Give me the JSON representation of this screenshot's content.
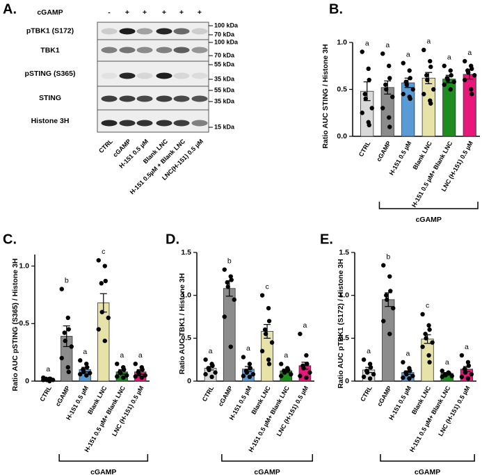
{
  "blot": {
    "panel": "A.",
    "treatment": "cGAMP",
    "signs": [
      "-",
      "+",
      "+",
      "+",
      "+",
      "+"
    ],
    "rows": [
      "pTBK1 (S172)",
      "TBK1",
      "pSTING (S365)",
      "STING",
      "Histone 3H"
    ],
    "markers": [
      "100 kDa",
      "70 kDa",
      "100 kDa",
      "70 kDa",
      "55 kDa",
      "35 kDa",
      "55 kDa",
      "35 kDa",
      "15 kDa"
    ],
    "lanes": [
      "CTRL",
      "cGAMP",
      "H-151 0.5 µM",
      "Blank LNC",
      "H-151 0.5µM + Blank LNC",
      "LNC(H-151) 0.5 µM"
    ]
  },
  "chart_data": [
    {
      "type": "bar",
      "panel": "B.",
      "y_label": "Ratio AUC STING / Histone  3H",
      "categories": [
        "CTRL",
        "cGAMP",
        "H-151 0.5 µM",
        "Blank LNC",
        "H-151 0.5 µM+ Blank LNC",
        "LNC (H-151) 0.5 µM"
      ],
      "values": [
        0.48,
        0.52,
        0.57,
        0.62,
        0.61,
        0.66
      ],
      "errors": [
        0.1,
        0.07,
        0.05,
        0.06,
        0.04,
        0.05
      ],
      "points": [
        [
          0.9,
          0.72,
          0.6,
          0.45,
          0.4,
          0.3,
          0.25,
          0.15,
          0.12
        ],
        [
          0.88,
          0.75,
          0.62,
          0.55,
          0.5,
          0.42,
          0.3,
          0.2,
          0.1
        ],
        [
          0.78,
          0.7,
          0.62,
          0.58,
          0.55,
          0.5,
          0.45,
          0.42,
          0.4
        ],
        [
          0.92,
          0.8,
          0.74,
          0.65,
          0.6,
          0.5,
          0.45,
          0.38,
          0.35
        ],
        [
          0.75,
          0.7,
          0.65,
          0.62,
          0.6,
          0.58,
          0.55,
          0.5
        ],
        [
          0.8,
          0.75,
          0.72,
          0.7,
          0.68,
          0.65,
          0.6,
          0.5,
          0.45
        ]
      ],
      "letters": [
        "a",
        "a",
        "a",
        "a",
        "a",
        "a"
      ],
      "colors": [
        "#d9d9d9",
        "#8c8c8c",
        "#5b9bd5",
        "#e6e2a8",
        "#1e8c1e",
        "#e8177a"
      ],
      "group_label": "cGAMP",
      "ylim": [
        0,
        1.0
      ],
      "yticks": [
        {
          "value": 0,
          "label": "0.0"
        },
        0.5,
        {
          "value": 1,
          "label": "1.0"
        }
      ]
    },
    {
      "type": "bar",
      "panel": "C.",
      "y_label": "Ratio AUC pSTING (S365) / Histone  3H",
      "categories": [
        "CTRL",
        "cGAMP",
        "H-151 0.5 µM",
        "Blank LNC",
        "H-151 0.5 µM+ Blank LNC",
        "LNC (H-151) 0.5 µM"
      ],
      "values": [
        0.02,
        0.39,
        0.1,
        0.68,
        0.08,
        0.08
      ],
      "errors": [
        0.005,
        0.09,
        0.02,
        0.08,
        0.02,
        0.02
      ],
      "points": [
        [
          0.03,
          0.02,
          0.02,
          0.02,
          0.01,
          0.01,
          0.01,
          0.0
        ],
        [
          0.8,
          0.55,
          0.45,
          0.42,
          0.35,
          0.3,
          0.2,
          0.12,
          0.08
        ],
        [
          0.18,
          0.15,
          0.12,
          0.1,
          0.08,
          0.07,
          0.06,
          0.05
        ],
        [
          1.05,
          1.0,
          0.87,
          0.85,
          0.6,
          0.55,
          0.45,
          0.35
        ],
        [
          0.15,
          0.12,
          0.1,
          0.08,
          0.07,
          0.05,
          0.04,
          0.03
        ],
        [
          0.15,
          0.12,
          0.1,
          0.08,
          0.06,
          0.05,
          0.04,
          0.03
        ]
      ],
      "letters": [
        "a",
        "b",
        "a",
        "c",
        "a",
        "a"
      ],
      "colors": [
        "#d9d9d9",
        "#8c8c8c",
        "#5b9bd5",
        "#e6e2a8",
        "#1e8c1e",
        "#e8177a"
      ],
      "group_label": "cGAMP",
      "ylim": [
        0,
        1.1
      ],
      "yticks": [
        0,
        0.5,
        {
          "value": 1,
          "label": "1.0"
        }
      ]
    },
    {
      "type": "bar",
      "panel": "D.",
      "y_label": "Ratio AUC TBK1 / Histone 3H",
      "categories": [
        "CTRL",
        "cGAMP",
        "H-151 0.5 µM",
        "Blank LNC",
        "H-151 0.5 µM+ Blank LNC",
        "LNC (H-151) 0.5 µM"
      ],
      "values": [
        0.15,
        1.08,
        0.14,
        0.58,
        0.12,
        0.18
      ],
      "errors": [
        0.02,
        0.09,
        0.03,
        0.08,
        0.02,
        0.04
      ],
      "points": [
        [
          0.25,
          0.2,
          0.18,
          0.15,
          0.13,
          0.1,
          0.08,
          0.05
        ],
        [
          1.3,
          1.22,
          1.18,
          1.15,
          1.1,
          0.95,
          0.75,
          0.4
        ],
        [
          0.28,
          0.2,
          0.15,
          0.12,
          0.1,
          0.08,
          0.06,
          0.05
        ],
        [
          1.0,
          0.85,
          0.7,
          0.6,
          0.55,
          0.45,
          0.35,
          0.25,
          0.2
        ],
        [
          0.2,
          0.15,
          0.13,
          0.12,
          0.1,
          0.08,
          0.06
        ],
        [
          0.55,
          0.3,
          0.2,
          0.18,
          0.15,
          0.1,
          0.06,
          0.04
        ]
      ],
      "letters": [
        "a",
        "b",
        "a",
        "c",
        "a",
        "a"
      ],
      "colors": [
        "#d9d9d9",
        "#8c8c8c",
        "#5b9bd5",
        "#e6e2a8",
        "#1e8c1e",
        "#e8177a"
      ],
      "group_label": "cGAMP",
      "ylim": [
        0,
        1.5
      ],
      "yticks": [
        0,
        0.5,
        {
          "value": 1,
          "label": "1.0"
        },
        1.5
      ]
    },
    {
      "type": "bar",
      "panel": "E.",
      "y_label": "Ratio AUC pTBK1 (S172) / Histone 3H",
      "categories": [
        "CTRL",
        "cGAMP",
        "H-151 0.5 µM",
        "Blank LNC",
        "H-151 0.5 µM+ Blank LNC",
        "LNC (H-151) 0.5 µM"
      ],
      "values": [
        0.13,
        0.95,
        0.1,
        0.49,
        0.09,
        0.14
      ],
      "errors": [
        0.03,
        0.08,
        0.02,
        0.05,
        0.01,
        0.03
      ],
      "points": [
        [
          0.25,
          0.2,
          0.16,
          0.12,
          0.1,
          0.08,
          0.05,
          0.03
        ],
        [
          1.35,
          1.22,
          1.05,
          1.0,
          0.95,
          0.85,
          0.7,
          0.55
        ],
        [
          0.22,
          0.15,
          0.12,
          0.1,
          0.08,
          0.06,
          0.04,
          0.03
        ],
        [
          0.78,
          0.65,
          0.6,
          0.55,
          0.5,
          0.45,
          0.4,
          0.3,
          0.22
        ],
        [
          0.12,
          0.1,
          0.09,
          0.08,
          0.07,
          0.06,
          0.05
        ],
        [
          0.3,
          0.22,
          0.18,
          0.14,
          0.1,
          0.08,
          0.05,
          0.03
        ]
      ],
      "letters": [
        "a",
        "b",
        "a",
        "c",
        "a",
        "a"
      ],
      "colors": [
        "#d9d9d9",
        "#8c8c8c",
        "#5b9bd5",
        "#e6e2a8",
        "#1e8c1e",
        "#e8177a"
      ],
      "group_label": "cGAMP",
      "ylim": [
        0,
        1.5
      ],
      "yticks": [
        0,
        0.5,
        {
          "value": 1,
          "label": "1.0"
        },
        1.5
      ]
    }
  ]
}
